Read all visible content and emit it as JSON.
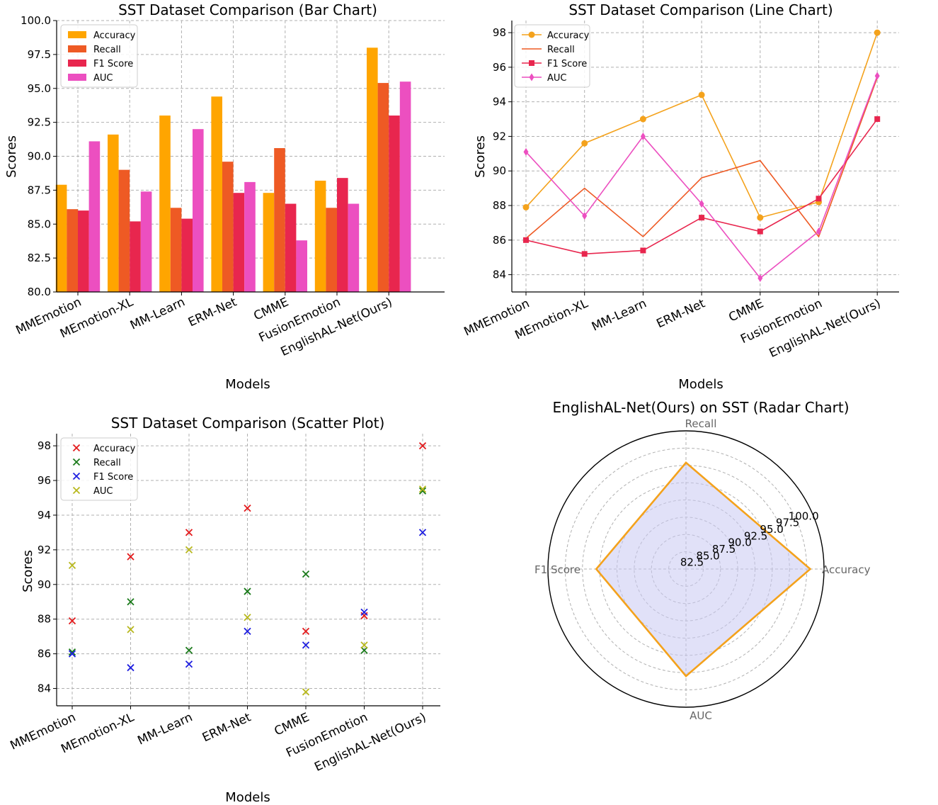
{
  "colors": {
    "bar": [
      "#FFA500",
      "#EE5A24",
      "#E8264E",
      "#EC4FC0"
    ],
    "line": [
      "#F4A21C",
      "#EE5A24",
      "#E8264E",
      "#EC4FC0"
    ],
    "scatter": [
      "#E31A1C",
      "#1A7A1A",
      "#1F1FE0",
      "#B8B81E"
    ],
    "radar_line": "#F4A21C",
    "radar_fill": "#C9C9F2"
  },
  "chart_data": [
    {
      "type": "bar",
      "title": "SST Dataset Comparison (Bar Chart)",
      "xlabel": "Models",
      "ylabel": "Scores",
      "ylim": [
        80,
        100
      ],
      "yticks": [
        "80.0",
        "82.5",
        "85.0",
        "87.5",
        "90.0",
        "92.5",
        "95.0",
        "97.5",
        "100.0"
      ],
      "grid": true,
      "legend": "top-left",
      "categories": [
        "MMEmotion",
        "MEmotion-XL",
        "MM-Learn",
        "ERM-Net",
        "CMME",
        "FusionEmotion",
        "EnglishAL-Net(Ours)"
      ],
      "series": [
        {
          "name": "Accuracy",
          "values": [
            87.9,
            91.6,
            93.0,
            94.4,
            87.3,
            88.2,
            98.0
          ]
        },
        {
          "name": "Recall",
          "values": [
            86.1,
            89.0,
            86.2,
            89.6,
            90.6,
            86.2,
            95.4
          ]
        },
        {
          "name": "F1 Score",
          "values": [
            86.0,
            85.2,
            85.4,
            87.3,
            86.5,
            88.4,
            93.0
          ]
        },
        {
          "name": "AUC",
          "values": [
            91.1,
            87.4,
            92.0,
            88.1,
            83.8,
            86.5,
            95.5
          ]
        }
      ]
    },
    {
      "type": "line",
      "title": "SST Dataset Comparison (Line Chart)",
      "xlabel": "Models",
      "ylabel": "Scores",
      "ylim": [
        83,
        98.7
      ],
      "yticks": [
        "84",
        "86",
        "88",
        "90",
        "92",
        "94",
        "96",
        "98"
      ],
      "grid": true,
      "legend": "top-left",
      "categories": [
        "MMEmotion",
        "MEmotion-XL",
        "MM-Learn",
        "ERM-Net",
        "CMME",
        "FusionEmotion",
        "EnglishAL-Net(Ours)"
      ],
      "series": [
        {
          "name": "Accuracy",
          "marker": "circle",
          "values": [
            87.9,
            91.6,
            93.0,
            94.4,
            87.3,
            88.2,
            98.0
          ]
        },
        {
          "name": "Recall",
          "marker": "none",
          "values": [
            86.1,
            89.0,
            86.2,
            89.6,
            90.6,
            86.2,
            95.4
          ]
        },
        {
          "name": "F1 Score",
          "marker": "square",
          "values": [
            86.0,
            85.2,
            85.4,
            87.3,
            86.5,
            88.4,
            93.0
          ]
        },
        {
          "name": "AUC",
          "marker": "diamond",
          "values": [
            91.1,
            87.4,
            92.0,
            88.1,
            83.8,
            86.5,
            95.5
          ]
        }
      ]
    },
    {
      "type": "scatter",
      "title": "SST Dataset Comparison (Scatter Plot)",
      "xlabel": "Models",
      "ylabel": "Scores",
      "ylim": [
        83,
        98.7
      ],
      "yticks": [
        "84",
        "86",
        "88",
        "90",
        "92",
        "94",
        "96",
        "98"
      ],
      "grid": true,
      "legend": "top-left",
      "categories": [
        "MMEmotion",
        "MEmotion-XL",
        "MM-Learn",
        "ERM-Net",
        "CMME",
        "FusionEmotion",
        "EnglishAL-Net(Ours)"
      ],
      "series": [
        {
          "name": "Accuracy",
          "values": [
            87.9,
            91.6,
            93.0,
            94.4,
            87.3,
            88.2,
            98.0
          ]
        },
        {
          "name": "Recall",
          "values": [
            86.1,
            89.0,
            86.2,
            89.6,
            90.6,
            86.2,
            95.4
          ]
        },
        {
          "name": "F1 Score",
          "values": [
            86.0,
            85.2,
            85.4,
            87.3,
            86.5,
            88.4,
            93.0
          ]
        },
        {
          "name": "AUC",
          "values": [
            91.1,
            87.4,
            92.0,
            88.1,
            83.8,
            86.5,
            95.5
          ]
        }
      ]
    },
    {
      "type": "radar",
      "title": "EnglishAL-Net(Ours) on SST (Radar Chart)",
      "axes": [
        "Accuracy",
        "Recall",
        "F1 Score",
        "AUC"
      ],
      "values": [
        98.0,
        95.4,
        93.0,
        95.5
      ],
      "rlim": [
        80,
        100
      ],
      "rticks": [
        "82.5",
        "85.0",
        "87.5",
        "90.0",
        "92.5",
        "95.0",
        "97.5",
        "100.0"
      ]
    }
  ]
}
